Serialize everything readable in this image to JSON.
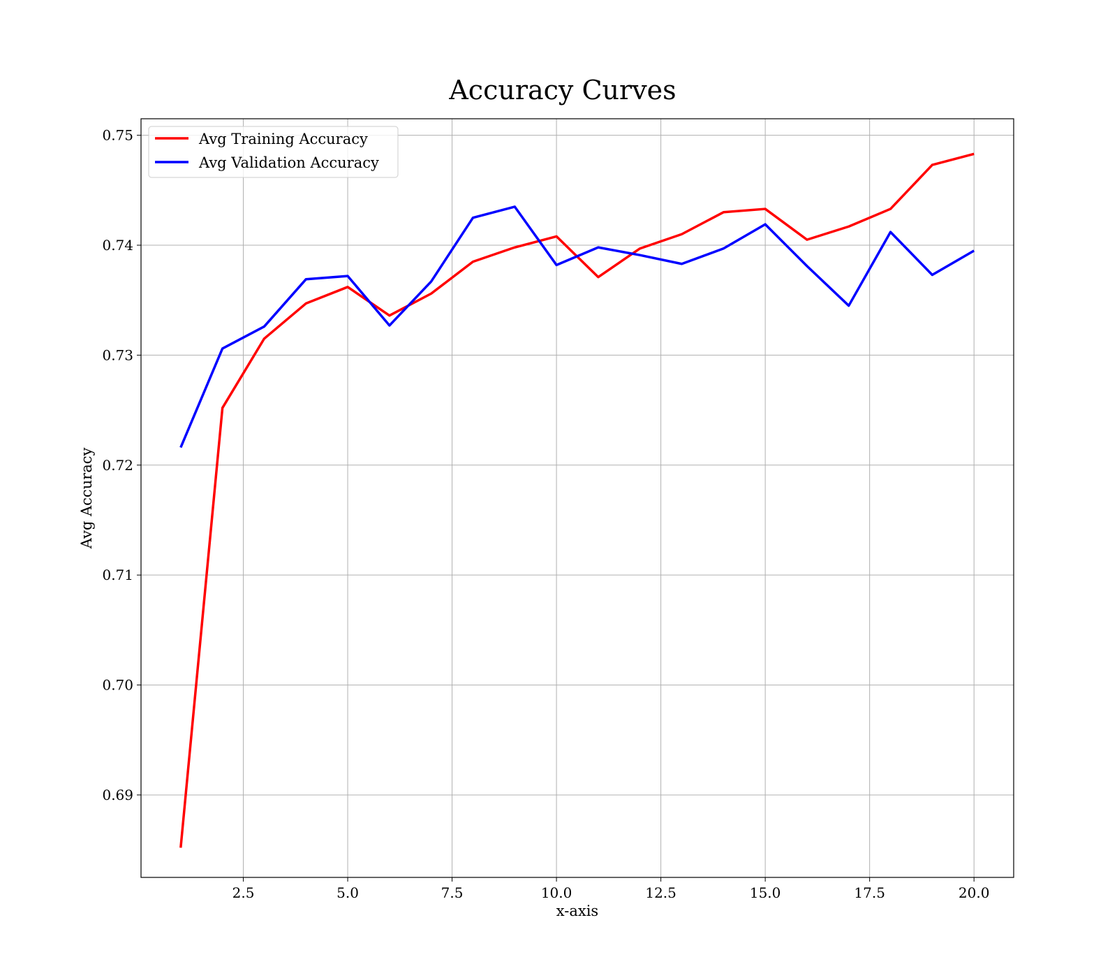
{
  "chart_data": {
    "type": "line",
    "title": "Accuracy Curves",
    "xlabel": "x-axis",
    "ylabel": "Avg Accuracy",
    "xlim": [
      0.05,
      20.95
    ],
    "ylim": [
      0.6825,
      0.7515
    ],
    "xticks": [
      2.5,
      5.0,
      7.5,
      10.0,
      12.5,
      15.0,
      17.5,
      20.0
    ],
    "xtick_labels": [
      "2.5",
      "5.0",
      "7.5",
      "10.0",
      "12.5",
      "15.0",
      "17.5",
      "20.0"
    ],
    "yticks": [
      0.69,
      0.7,
      0.71,
      0.72,
      0.73,
      0.74,
      0.75
    ],
    "ytick_labels": [
      "0.69",
      "0.70",
      "0.71",
      "0.72",
      "0.73",
      "0.74",
      "0.75"
    ],
    "grid": true,
    "legend_position": "top-left",
    "x": [
      1,
      2,
      3,
      4,
      5,
      6,
      7,
      8,
      9,
      10,
      11,
      12,
      13,
      14,
      15,
      16,
      17,
      18,
      19,
      20
    ],
    "series": [
      {
        "name": "Avg Training Accuracy",
        "color": "#ff0000",
        "values": [
          0.6852,
          0.7252,
          0.7315,
          0.7347,
          0.7362,
          0.7336,
          0.7356,
          0.7385,
          0.7398,
          0.7408,
          0.7371,
          0.7397,
          0.741,
          0.743,
          0.7433,
          0.7405,
          0.7417,
          0.7433,
          0.7473,
          0.7483
        ]
      },
      {
        "name": "Avg Validation Accuracy",
        "color": "#0000ff",
        "values": [
          0.7216,
          0.7306,
          0.7326,
          0.7369,
          0.7372,
          0.7327,
          0.7367,
          0.7425,
          0.7435,
          0.7382,
          0.7398,
          0.7391,
          0.7383,
          0.7397,
          0.7419,
          0.7381,
          0.7345,
          0.7412,
          0.7373,
          0.7395
        ]
      }
    ]
  }
}
